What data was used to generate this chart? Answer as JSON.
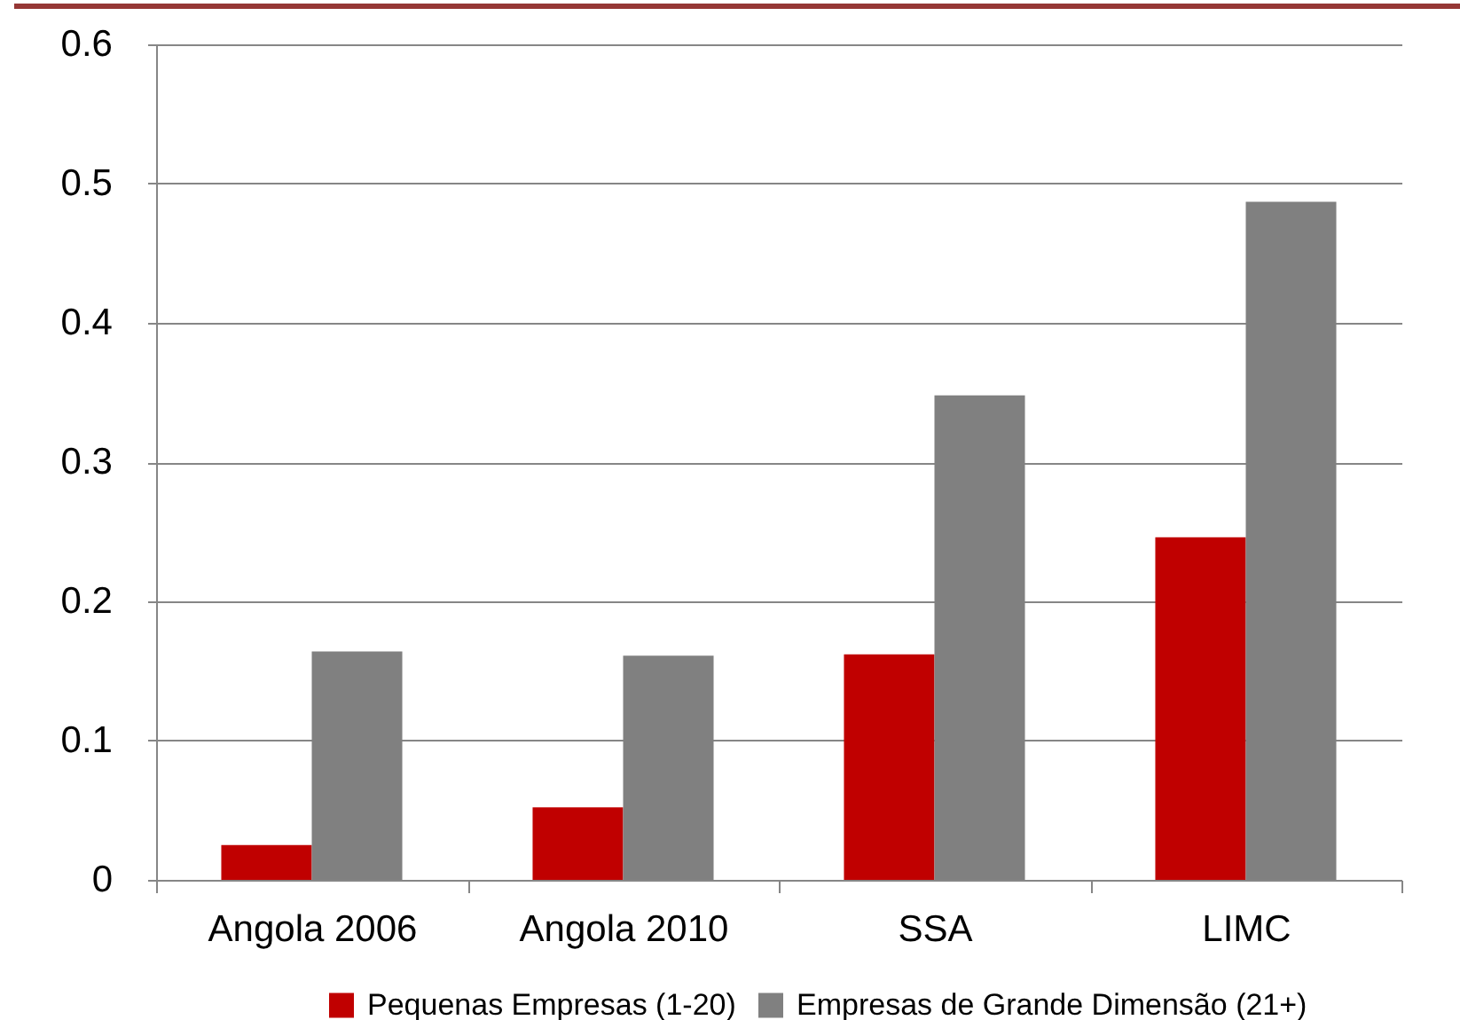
{
  "chart_data": {
    "type": "bar",
    "categories": [
      "Angola 2006",
      "Angola 2010",
      "SSA",
      "LIMC"
    ],
    "series": [
      {
        "name": "Pequenas Empresas (1-20)",
        "color": "#c00000",
        "values": [
          0.025,
          0.052,
          0.162,
          0.246
        ]
      },
      {
        "name": "Empresas de Grande Dimensão (21+)",
        "color": "#808080",
        "values": [
          0.164,
          0.161,
          0.348,
          0.487
        ]
      }
    ],
    "ylim": [
      0,
      0.6
    ],
    "yticks": [
      0,
      0.1,
      0.2,
      0.3,
      0.4,
      0.5,
      0.6
    ],
    "grid": "y",
    "legend": "bottom"
  }
}
